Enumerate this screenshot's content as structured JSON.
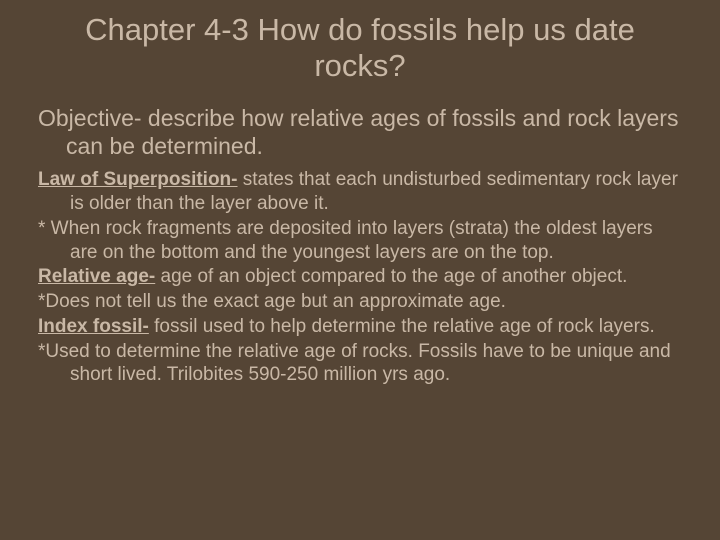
{
  "colors": {
    "background": "#554535",
    "text": "#c9b8a6"
  },
  "typography": {
    "title_fontsize": 31,
    "objective_fontsize": 23,
    "body_fontsize": 19,
    "font_family": "Comic Sans MS"
  },
  "title": "Chapter 4-3 How do fossils help us date rocks?",
  "objective": "Objective- describe how relative ages of fossils and rock layers can be determined.",
  "terms": {
    "law_label": "Law of Superposition-",
    "law_text": " states that each undisturbed sedimentary rock layer is older than the layer above it.",
    "law_note": "* When rock fragments are deposited into layers (strata) the oldest layers are on the bottom and the youngest layers are on the top.",
    "relative_label": "Relative age-",
    "relative_text": " age of an object compared to the age of another object.",
    "relative_note": "*Does not tell us the exact age but an approximate age.",
    "index_label": "Index fossil-",
    "index_text": " fossil used to help determine the relative age of rock layers.",
    "index_note": "*Used to determine the relative age of rocks. Fossils have to be unique and short lived. Trilobites 590-250 million yrs ago."
  }
}
